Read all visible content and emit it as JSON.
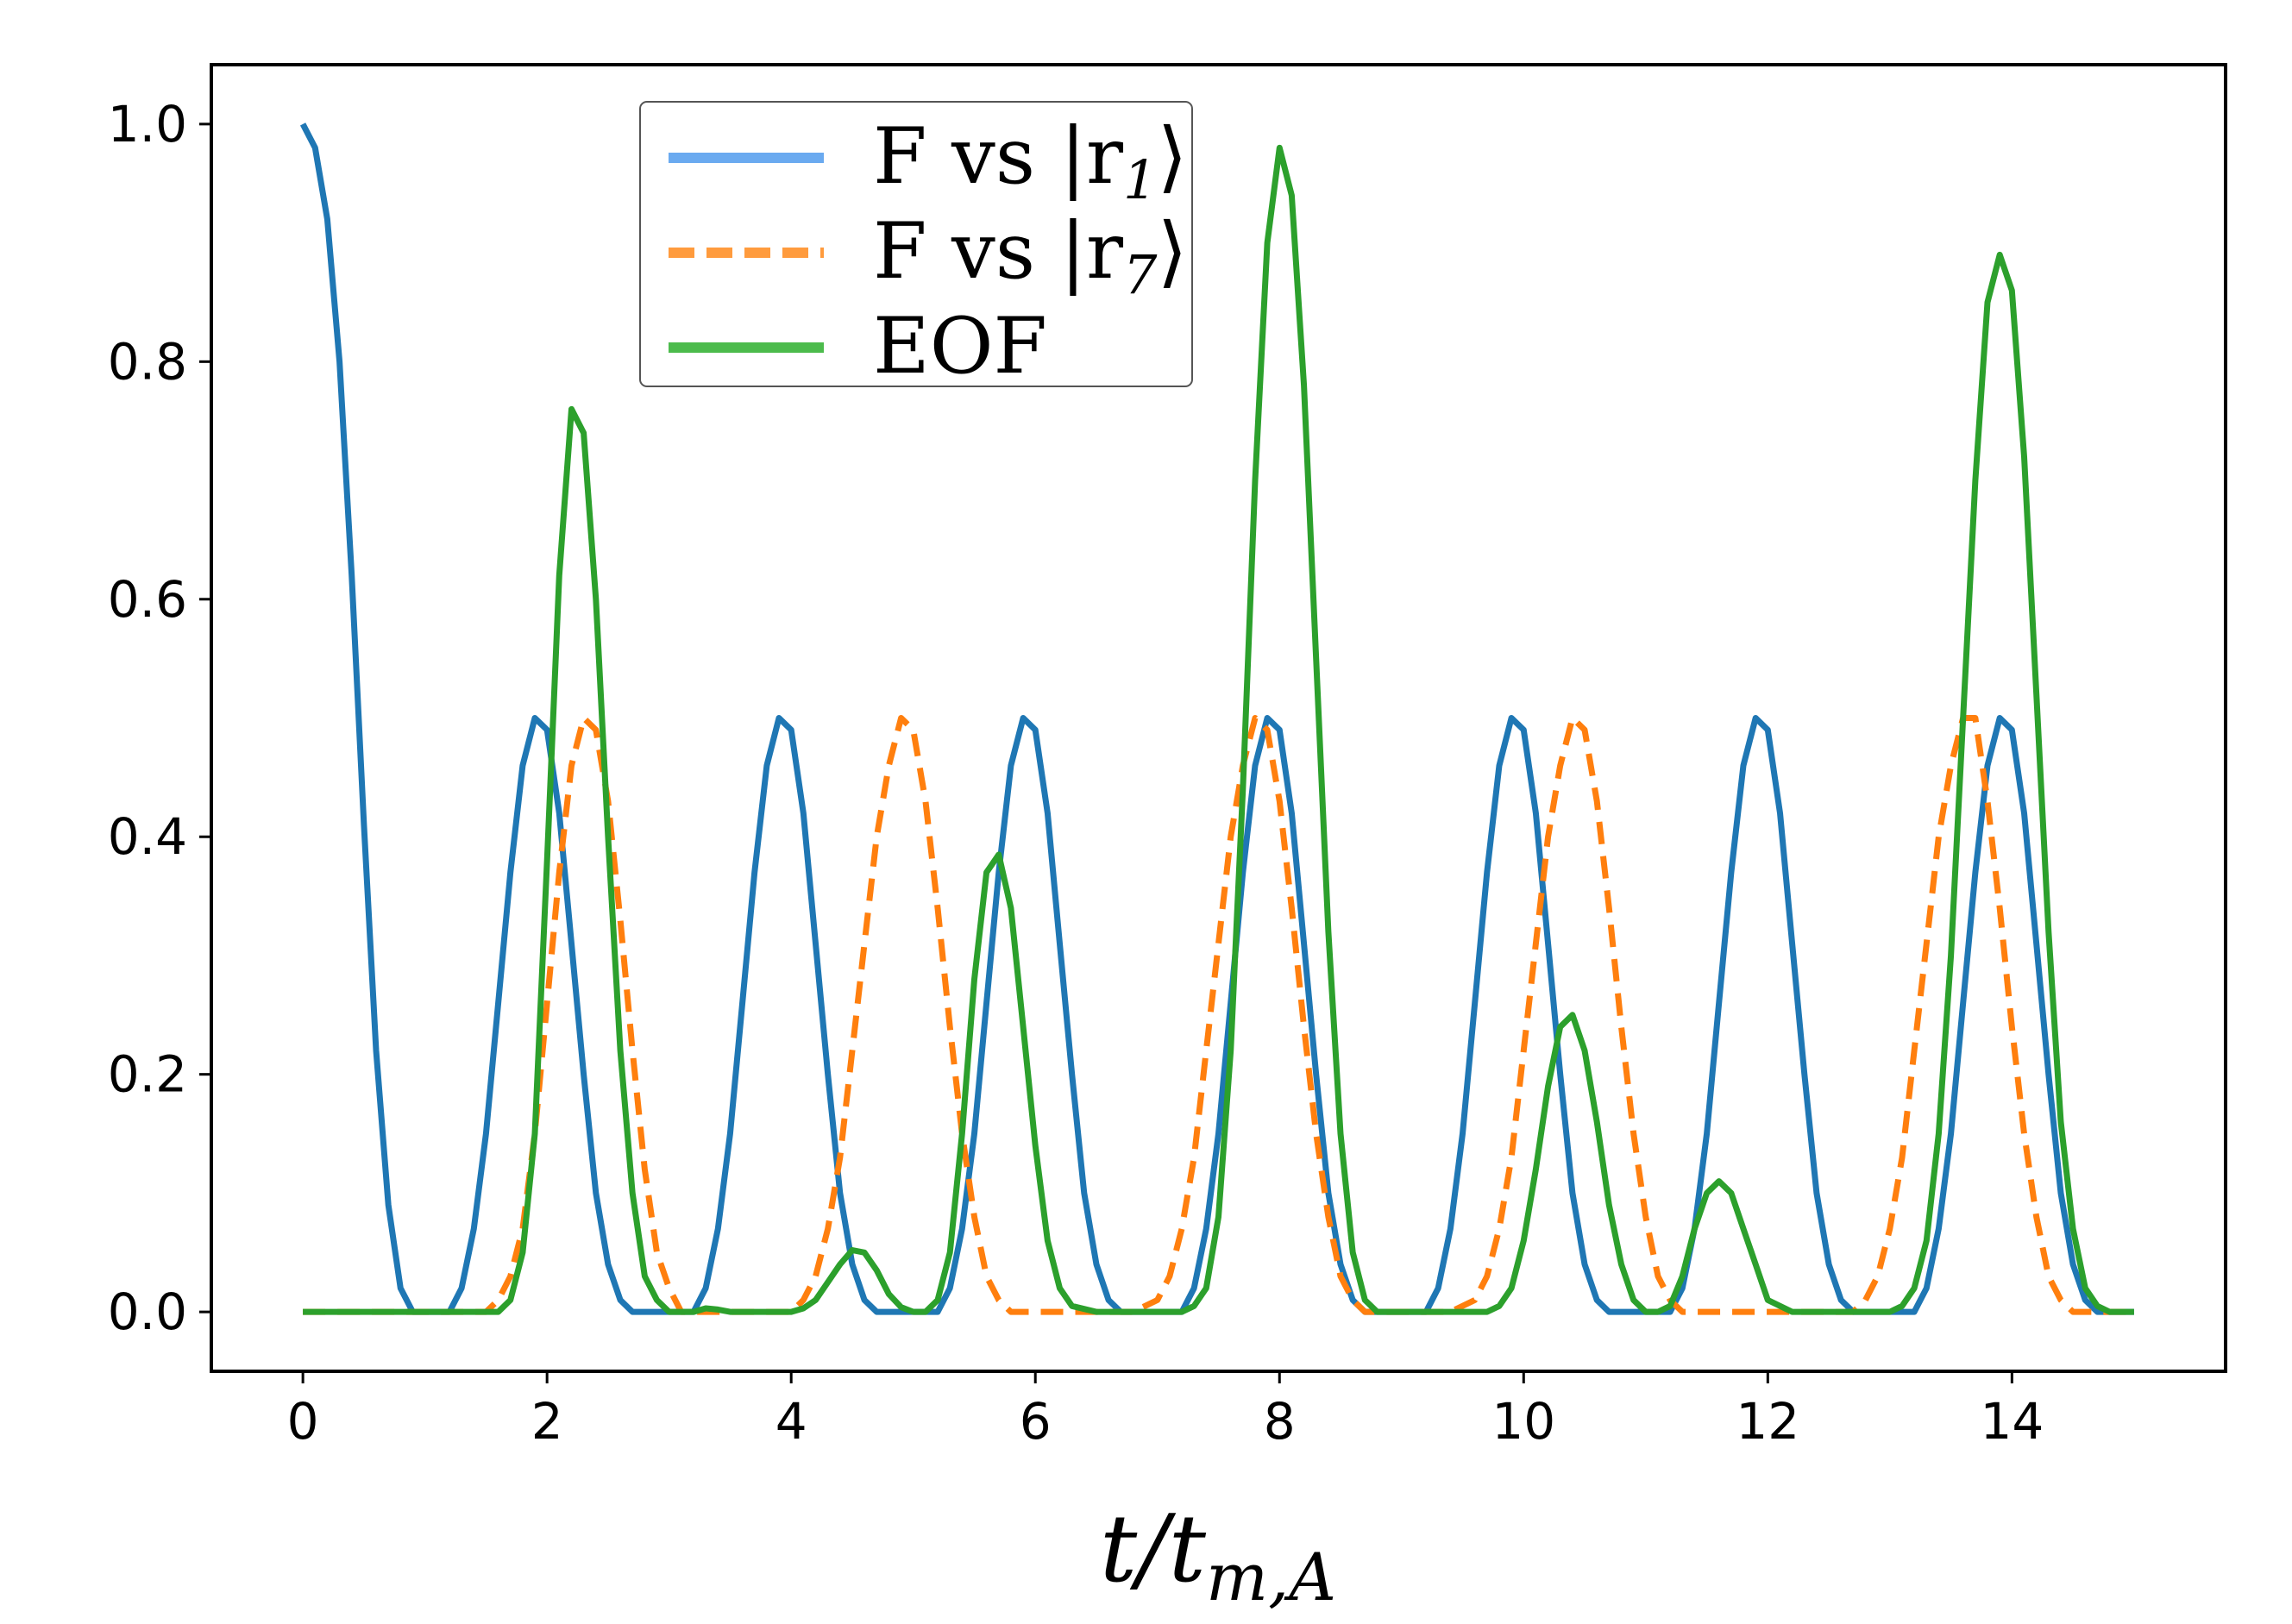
{
  "chart_data": {
    "type": "line",
    "title": "",
    "xlabel_main": "t/t",
    "xlabel_sub": "m,A",
    "ylabel": "",
    "xlim": [
      -0.75,
      15.75
    ],
    "ylim": [
      -0.05,
      1.05
    ],
    "xticks": [
      0,
      2,
      4,
      6,
      8,
      10,
      12,
      14
    ],
    "xtick_labels": [
      "0",
      "2",
      "4",
      "6",
      "8",
      "10",
      "12",
      "14"
    ],
    "yticks": [
      0.0,
      0.2,
      0.4,
      0.6,
      0.8,
      1.0
    ],
    "ytick_labels": [
      "0.0",
      "0.2",
      "0.4",
      "0.6",
      "0.8",
      "1.0"
    ],
    "grid": false,
    "legend_position": "top-center",
    "series": [
      {
        "name": "F vs |r1⟩",
        "legend_main": "F vs |r",
        "legend_sub": "1",
        "legend_end": "⟩",
        "color": "#1f77b4",
        "legend_color": "#6aaaf0",
        "style": "solid",
        "x": [
          0.0,
          0.1,
          0.2,
          0.3,
          0.4,
          0.5,
          0.6,
          0.7,
          0.8,
          0.9,
          1.0,
          1.1,
          1.2,
          1.3,
          1.4,
          1.5,
          1.6,
          1.7,
          1.8,
          1.9,
          2.0,
          2.1,
          2.2,
          2.3,
          2.4,
          2.5,
          2.6,
          2.7,
          2.8,
          2.9,
          3.0,
          3.1,
          3.2,
          3.3,
          3.4,
          3.5,
          3.6,
          3.7,
          3.8,
          3.9,
          4.0,
          4.1,
          4.2,
          4.3,
          4.4,
          4.5,
          4.6,
          4.7,
          4.8,
          4.9,
          5.0,
          5.1,
          5.2,
          5.3,
          5.4,
          5.5,
          5.6,
          5.7,
          5.8,
          5.9,
          6.0,
          6.1,
          6.2,
          6.3,
          6.4,
          6.5,
          6.6,
          6.7,
          6.8,
          6.9,
          7.0,
          7.1,
          7.2,
          7.3,
          7.4,
          7.5,
          7.6,
          7.7,
          7.8,
          7.9,
          8.0,
          8.1,
          8.2,
          8.3,
          8.4,
          8.5,
          8.6,
          8.7,
          8.8,
          8.9,
          9.0,
          9.1,
          9.2,
          9.3,
          9.4,
          9.5,
          9.6,
          9.7,
          9.8,
          9.9,
          10.0,
          10.1,
          10.2,
          10.3,
          10.4,
          10.5,
          10.6,
          10.7,
          10.8,
          10.9,
          11.0,
          11.1,
          11.2,
          11.3,
          11.4,
          11.5,
          11.6,
          11.7,
          11.8,
          11.9,
          12.0,
          12.1,
          12.2,
          12.3,
          12.4,
          12.5,
          12.6,
          12.7,
          12.8,
          12.9,
          13.0,
          13.1,
          13.2,
          13.3,
          13.4,
          13.5,
          13.6,
          13.7,
          13.8,
          13.9,
          14.0,
          14.1,
          14.2,
          14.3,
          14.4,
          14.5,
          14.6,
          14.7,
          14.8,
          14.9,
          15.0
        ],
        "y": [
          1.0,
          0.98,
          0.92,
          0.8,
          0.62,
          0.41,
          0.22,
          0.09,
          0.02,
          0.0,
          0.0,
          0.0,
          0.0,
          0.02,
          0.07,
          0.15,
          0.26,
          0.37,
          0.46,
          0.5,
          0.49,
          0.42,
          0.31,
          0.2,
          0.1,
          0.04,
          0.01,
          0.0,
          0.0,
          0.0,
          0.0,
          0.0,
          0.0,
          0.02,
          0.07,
          0.15,
          0.26,
          0.37,
          0.46,
          0.5,
          0.49,
          0.42,
          0.31,
          0.2,
          0.1,
          0.04,
          0.01,
          0.0,
          0.0,
          0.0,
          0.0,
          0.0,
          0.0,
          0.02,
          0.07,
          0.15,
          0.26,
          0.37,
          0.46,
          0.5,
          0.49,
          0.42,
          0.31,
          0.2,
          0.1,
          0.04,
          0.01,
          0.0,
          0.0,
          0.0,
          0.0,
          0.0,
          0.0,
          0.02,
          0.07,
          0.15,
          0.26,
          0.37,
          0.46,
          0.5,
          0.49,
          0.42,
          0.31,
          0.2,
          0.1,
          0.04,
          0.01,
          0.0,
          0.0,
          0.0,
          0.0,
          0.0,
          0.0,
          0.02,
          0.07,
          0.15,
          0.26,
          0.37,
          0.46,
          0.5,
          0.49,
          0.42,
          0.31,
          0.2,
          0.1,
          0.04,
          0.01,
          0.0,
          0.0,
          0.0,
          0.0,
          0.0,
          0.0,
          0.02,
          0.07,
          0.15,
          0.26,
          0.37,
          0.46,
          0.5,
          0.49,
          0.42,
          0.31,
          0.2,
          0.1,
          0.04,
          0.01,
          0.0,
          0.0,
          0.0,
          0.0,
          0.0,
          0.0,
          0.02,
          0.07,
          0.15,
          0.26,
          0.37,
          0.46,
          0.5,
          0.49,
          0.42,
          0.31,
          0.2,
          0.1,
          0.04,
          0.01,
          0.0,
          0.0,
          0.0,
          0.0
        ]
      },
      {
        "name": "F vs |r7⟩",
        "legend_main": "F vs |r",
        "legend_sub": "7",
        "legend_end": "⟩",
        "color": "#ff7f0e",
        "legend_color": "#ff9b3d",
        "style": "dashed",
        "x": [
          0.0,
          0.5,
          1.0,
          1.2,
          1.4,
          1.5,
          1.6,
          1.7,
          1.8,
          1.9,
          2.0,
          2.1,
          2.2,
          2.3,
          2.4,
          2.5,
          2.6,
          2.7,
          2.8,
          2.9,
          3.0,
          3.1,
          3.2,
          3.3,
          3.4,
          3.5,
          3.8,
          4.0,
          4.1,
          4.2,
          4.3,
          4.4,
          4.5,
          4.6,
          4.7,
          4.8,
          4.9,
          5.0,
          5.1,
          5.2,
          5.3,
          5.4,
          5.5,
          5.6,
          5.7,
          5.8,
          5.9,
          6.0,
          6.1,
          6.2,
          6.3,
          6.4,
          6.5,
          6.8,
          7.0,
          7.1,
          7.2,
          7.3,
          7.4,
          7.5,
          7.6,
          7.7,
          7.8,
          7.9,
          8.0,
          8.1,
          8.2,
          8.3,
          8.4,
          8.5,
          8.6,
          8.7,
          8.8,
          8.9,
          9.0,
          9.1,
          9.2,
          9.4,
          9.6,
          9.7,
          9.8,
          9.9,
          10.0,
          10.1,
          10.2,
          10.3,
          10.4,
          10.5,
          10.6,
          10.7,
          10.8,
          10.9,
          11.0,
          11.1,
          11.2,
          11.3,
          11.4,
          11.5,
          11.6,
          11.7,
          11.8,
          11.9,
          12.0,
          12.1,
          12.3,
          12.5,
          12.7,
          12.8,
          12.9,
          13.0,
          13.1,
          13.2,
          13.3,
          13.4,
          13.5,
          13.6,
          13.7,
          13.8,
          13.9,
          14.0,
          14.1,
          14.2,
          14.3,
          14.4,
          14.5,
          14.6,
          14.7,
          14.8,
          14.9,
          15.0
        ],
        "y": [
          0.0,
          0.0,
          0.0,
          0.0,
          0.0,
          0.0,
          0.01,
          0.03,
          0.07,
          0.15,
          0.26,
          0.37,
          0.46,
          0.5,
          0.49,
          0.43,
          0.33,
          0.22,
          0.12,
          0.05,
          0.02,
          0.0,
          0.0,
          0.0,
          0.0,
          0.0,
          0.0,
          0.0,
          0.01,
          0.03,
          0.07,
          0.13,
          0.22,
          0.31,
          0.4,
          0.46,
          0.5,
          0.49,
          0.43,
          0.34,
          0.24,
          0.15,
          0.08,
          0.03,
          0.01,
          0.0,
          0.0,
          0.0,
          0.0,
          0.0,
          0.0,
          0.0,
          0.0,
          0.0,
          0.01,
          0.03,
          0.07,
          0.13,
          0.22,
          0.31,
          0.4,
          0.46,
          0.5,
          0.49,
          0.43,
          0.34,
          0.24,
          0.15,
          0.08,
          0.03,
          0.01,
          0.0,
          0.0,
          0.0,
          0.0,
          0.0,
          0.0,
          0.0,
          0.01,
          0.03,
          0.07,
          0.13,
          0.22,
          0.31,
          0.4,
          0.46,
          0.5,
          0.49,
          0.43,
          0.34,
          0.24,
          0.15,
          0.08,
          0.03,
          0.01,
          0.0,
          0.0,
          0.0,
          0.0,
          0.0,
          0.0,
          0.0,
          0.0,
          0.0,
          0.0,
          0.0,
          0.0,
          0.01,
          0.03,
          0.07,
          0.13,
          0.22,
          0.31,
          0.4,
          0.46,
          0.5,
          0.5,
          0.43,
          0.34,
          0.24,
          0.15,
          0.08,
          0.03,
          0.01,
          0.0,
          0.0,
          0.0,
          0.0,
          0.0,
          0.0
        ]
      },
      {
        "name": "EOF",
        "legend_main": "EOF",
        "legend_sub": "",
        "legend_end": "",
        "color": "#2ca02c",
        "legend_color": "#4cbb4c",
        "style": "solid",
        "x": [
          0.0,
          0.5,
          1.0,
          1.3,
          1.5,
          1.6,
          1.7,
          1.8,
          1.9,
          2.0,
          2.1,
          2.2,
          2.3,
          2.4,
          2.5,
          2.6,
          2.7,
          2.8,
          2.9,
          3.0,
          3.1,
          3.2,
          3.3,
          3.4,
          3.5,
          3.6,
          4.0,
          4.1,
          4.2,
          4.3,
          4.4,
          4.5,
          4.6,
          4.7,
          4.8,
          4.9,
          5.0,
          5.1,
          5.2,
          5.3,
          5.4,
          5.5,
          5.6,
          5.7,
          5.8,
          5.9,
          6.0,
          6.1,
          6.2,
          6.3,
          6.5,
          7.0,
          7.2,
          7.3,
          7.4,
          7.5,
          7.6,
          7.7,
          7.8,
          7.9,
          8.0,
          8.1,
          8.2,
          8.3,
          8.4,
          8.5,
          8.6,
          8.7,
          8.8,
          8.9,
          9.0,
          9.5,
          9.7,
          9.8,
          9.9,
          10.0,
          10.1,
          10.2,
          10.3,
          10.4,
          10.5,
          10.6,
          10.7,
          10.8,
          10.9,
          11.0,
          11.1,
          11.2,
          11.3,
          11.4,
          11.5,
          11.6,
          11.7,
          11.8,
          11.9,
          12.0,
          12.2,
          12.5,
          12.8,
          13.0,
          13.1,
          13.2,
          13.3,
          13.4,
          13.5,
          13.6,
          13.7,
          13.8,
          13.9,
          14.0,
          14.1,
          14.2,
          14.3,
          14.4,
          14.5,
          14.6,
          14.7,
          14.8,
          15.0
        ],
        "y": [
          0.0,
          0.0,
          0.0,
          0.0,
          0.0,
          0.0,
          0.01,
          0.05,
          0.15,
          0.38,
          0.62,
          0.76,
          0.74,
          0.6,
          0.4,
          0.22,
          0.1,
          0.03,
          0.01,
          0.0,
          0.0,
          0.0,
          0.003,
          0.002,
          0.0,
          0.0,
          0.0,
          0.003,
          0.01,
          0.025,
          0.04,
          0.052,
          0.05,
          0.035,
          0.015,
          0.004,
          0.0,
          0.0,
          0.01,
          0.05,
          0.15,
          0.28,
          0.37,
          0.385,
          0.34,
          0.24,
          0.14,
          0.06,
          0.02,
          0.005,
          0.0,
          0.0,
          0.0,
          0.005,
          0.02,
          0.08,
          0.22,
          0.44,
          0.7,
          0.9,
          0.98,
          0.94,
          0.78,
          0.55,
          0.32,
          0.15,
          0.05,
          0.01,
          0.0,
          0.0,
          0.0,
          0.0,
          0.0,
          0.005,
          0.02,
          0.06,
          0.12,
          0.19,
          0.24,
          0.25,
          0.22,
          0.16,
          0.09,
          0.04,
          0.01,
          0.0,
          0.0,
          0.005,
          0.03,
          0.07,
          0.1,
          0.11,
          0.1,
          0.07,
          0.04,
          0.01,
          0.0,
          0.0,
          0.0,
          0.0,
          0.005,
          0.02,
          0.06,
          0.15,
          0.3,
          0.5,
          0.7,
          0.85,
          0.89,
          0.86,
          0.72,
          0.52,
          0.32,
          0.16,
          0.07,
          0.02,
          0.005,
          0.0,
          0.0
        ]
      }
    ]
  }
}
